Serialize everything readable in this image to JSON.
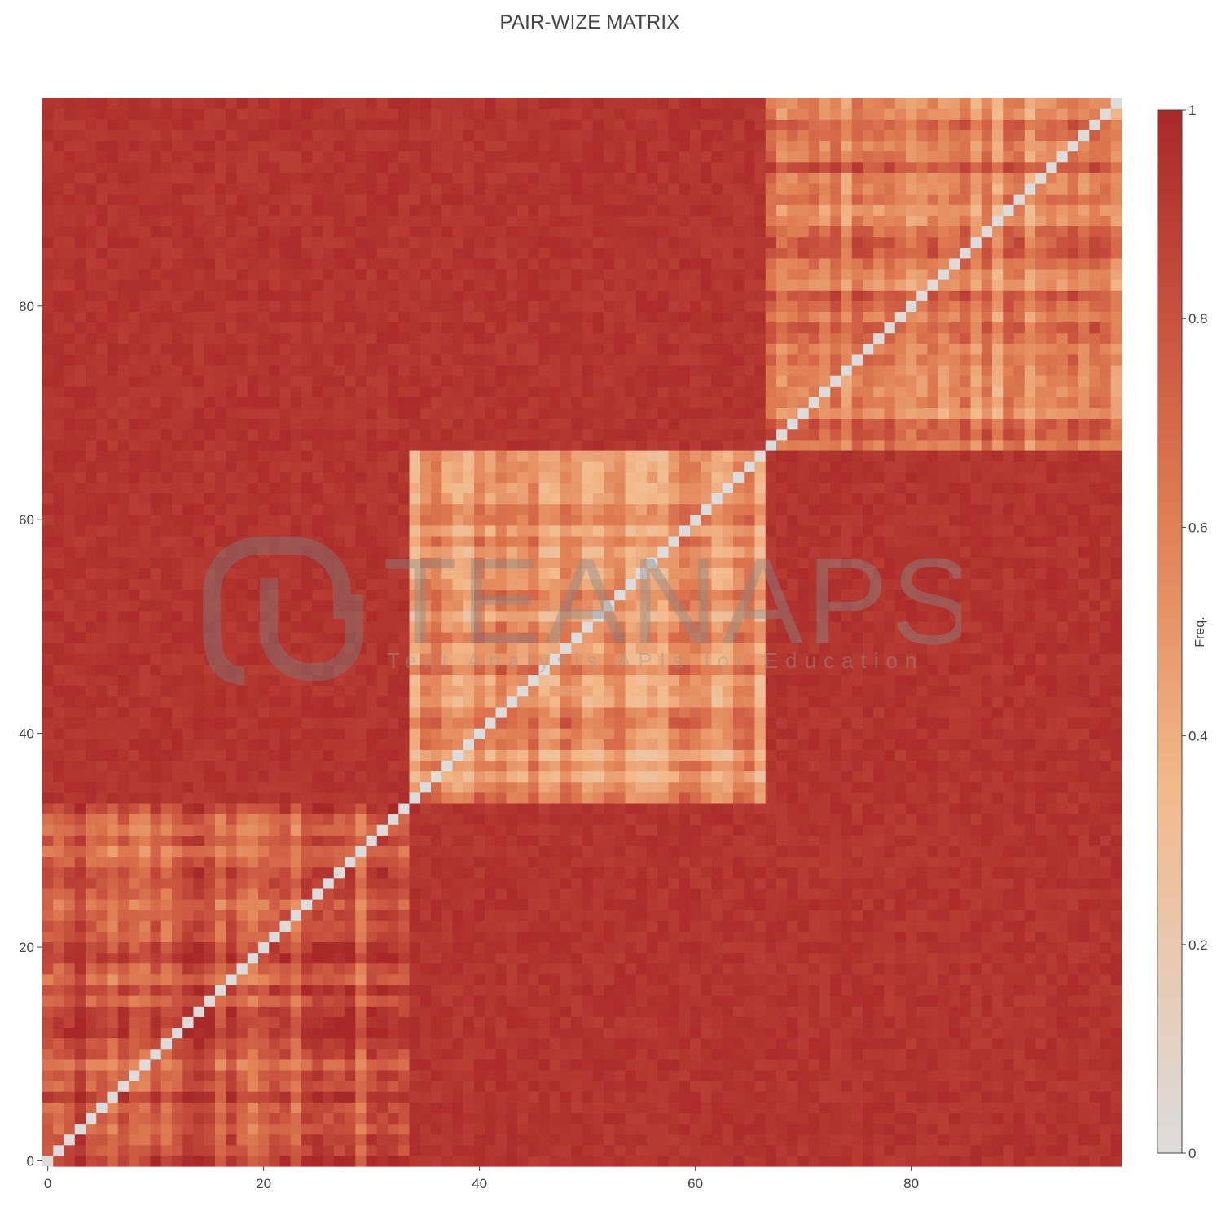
{
  "chart_data": {
    "type": "heatmap",
    "title": "PAIR-WIZE MATRIX",
    "x": {
      "range": [
        -0.5,
        99.5
      ],
      "tick_values": [
        0,
        20,
        40,
        60,
        80
      ],
      "tick_labels": [
        "0",
        "20",
        "40",
        "60",
        "80"
      ]
    },
    "y": {
      "range": [
        -0.5,
        99.5
      ],
      "tick_values": [
        0,
        20,
        40,
        60,
        80
      ],
      "tick_labels": [
        "0",
        "20",
        "40",
        "60",
        "80"
      ]
    },
    "matrix_size": 100,
    "diagonal_value": 0,
    "clusters": [
      {
        "start": 0,
        "end": 33,
        "within_value_approx": 0.78
      },
      {
        "start": 34,
        "end": 66,
        "within_value_approx": 0.5
      },
      {
        "start": 67,
        "end": 99,
        "within_value_approx": 0.6
      }
    ],
    "between_cluster_value_approx": 0.94,
    "colorbar": {
      "title": "Freq.",
      "range": [
        0,
        1
      ],
      "tick_values": [
        0,
        0.2,
        0.4,
        0.6,
        0.8,
        1
      ],
      "tick_labels": [
        "0",
        "0.2",
        "0.4",
        "0.6",
        "0.8",
        "1"
      ],
      "colorscale": [
        [
          0,
          "#dcdcdc"
        ],
        [
          0.35,
          "#f2b98a"
        ],
        [
          0.6,
          "#e08054"
        ],
        [
          0.8,
          "#c9523e"
        ],
        [
          1,
          "#a82828"
        ]
      ]
    }
  },
  "watermark": {
    "name": "TEANAPS",
    "tagline": "Text Analysis APIs for Education"
  }
}
